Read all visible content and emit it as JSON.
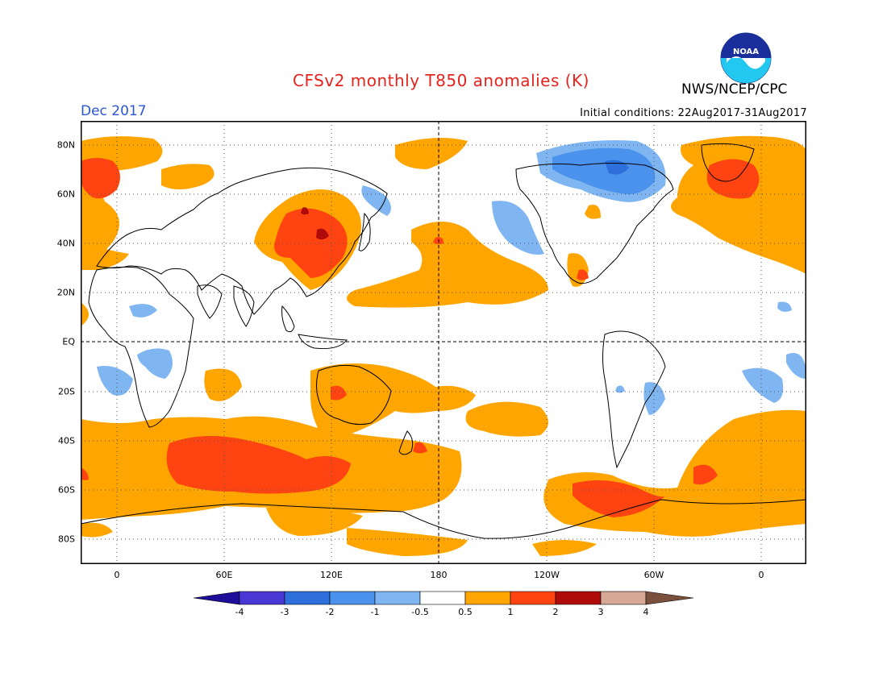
{
  "header": {
    "title": "CFSv2 monthly T850 anomalies (K)",
    "agency": "NWS/NCEP/CPC",
    "logo_text": "NOAA",
    "month": "Dec 2017",
    "initial_conditions": "Initial conditions: 22Aug2017-31Aug2017"
  },
  "map": {
    "y_ticks": [
      "80N",
      "60N",
      "40N",
      "20N",
      "EQ",
      "20S",
      "40S",
      "60S",
      "80S"
    ],
    "x_ticks": [
      "0",
      "60E",
      "120E",
      "180",
      "120W",
      "60W",
      "0"
    ],
    "gridlines": "dotted",
    "dateline_dashed": true,
    "equator_dashed": true
  },
  "colorbar": {
    "labels": [
      "-4",
      "-3",
      "-2",
      "-1",
      "-0.5",
      "0.5",
      "1",
      "2",
      "3",
      "4"
    ],
    "colors": [
      "#1f0e9a",
      "#4a38d6",
      "#2f6fdc",
      "#4a92ec",
      "#7fb6f2",
      "#ffffff",
      "#ffa500",
      "#ff4411",
      "#b00b0b",
      "#d6a896",
      "#7a4f3c"
    ]
  },
  "colors": {
    "warm1": "#ffa500",
    "warm2": "#ff4411",
    "warm3": "#b00b0b",
    "cool1": "#7fb6f2",
    "cool2": "#4a92ec"
  }
}
